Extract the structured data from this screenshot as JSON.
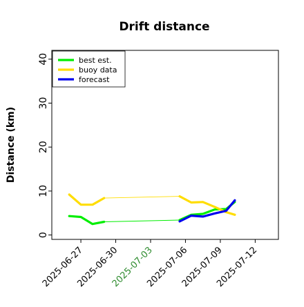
{
  "chart_data": {
    "type": "line",
    "title": "Drift distance",
    "xlabel": "",
    "ylabel": "Distance (km)",
    "xlim": [
      "2025-06-24T12:00",
      "2025-07-14T00:00"
    ],
    "ylim": [
      -1,
      42
    ],
    "yticks": [
      0,
      10,
      20,
      30,
      40
    ],
    "xticks": [
      {
        "date": "2025-06-27",
        "label": "2025-06-27",
        "color": "#000000"
      },
      {
        "date": "2025-06-30",
        "label": "2025-06-30",
        "color": "#000000"
      },
      {
        "date": "2025-07-03",
        "label": "2025-07-03",
        "color": "#2e8b2e"
      },
      {
        "date": "2025-07-06",
        "label": "2025-07-06",
        "color": "#000000"
      },
      {
        "date": "2025-07-09",
        "label": "2025-07-09",
        "color": "#000000"
      },
      {
        "date": "2025-07-12",
        "label": "2025-07-12",
        "color": "#000000"
      }
    ],
    "grid": false,
    "legend_position": "top-left",
    "series": [
      {
        "name": "best est.",
        "color": "#00ee00",
        "segments": [
          {
            "linewidth": "thick",
            "x": [
              "2025-06-26T00:00",
              "2025-06-27T00:00",
              "2025-06-28T00:00",
              "2025-06-29T00:00"
            ],
            "y": [
              4.3,
              4.1,
              2.5,
              3.0
            ]
          },
          {
            "linewidth": "thin",
            "x": [
              "2025-06-29T00:00",
              "2025-07-05T12:00"
            ],
            "y": [
              3.0,
              3.4
            ]
          },
          {
            "linewidth": "thick",
            "x": [
              "2025-07-05T12:00",
              "2025-07-06T12:00",
              "2025-07-07T12:00",
              "2025-07-08T12:00",
              "2025-07-09T12:00",
              "2025-07-10T06:00"
            ],
            "y": [
              3.4,
              4.6,
              4.8,
              5.8,
              5.9,
              7.5
            ]
          }
        ]
      },
      {
        "name": "buoy data",
        "color": "#ffdd00",
        "segments": [
          {
            "linewidth": "thick",
            "x": [
              "2025-06-26T00:00",
              "2025-06-27T00:00",
              "2025-06-28T00:00",
              "2025-06-29T00:00"
            ],
            "y": [
              9.2,
              6.9,
              6.9,
              8.4
            ]
          },
          {
            "linewidth": "thin",
            "x": [
              "2025-06-29T00:00",
              "2025-07-05T12:00"
            ],
            "y": [
              8.4,
              8.8
            ]
          },
          {
            "linewidth": "thick",
            "x": [
              "2025-07-05T12:00",
              "2025-07-06T12:00",
              "2025-07-07T12:00",
              "2025-07-08T12:00",
              "2025-07-09T12:00",
              "2025-07-10T06:00"
            ],
            "y": [
              8.8,
              7.4,
              7.5,
              6.4,
              5.2,
              4.6
            ]
          }
        ]
      },
      {
        "name": "forecast",
        "color": "#0000ee",
        "segments": [
          {
            "linewidth": "thick",
            "x": [
              "2025-07-05T12:00",
              "2025-07-06T12:00",
              "2025-07-07T12:00",
              "2025-07-08T12:00",
              "2025-07-09T12:00",
              "2025-07-10T06:00"
            ],
            "y": [
              3.1,
              4.4,
              4.2,
              4.9,
              5.5,
              7.9
            ]
          }
        ]
      }
    ]
  }
}
